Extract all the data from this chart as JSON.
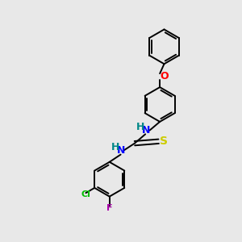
{
  "bg_color": "#e8e8e8",
  "bond_color": "#000000",
  "atom_colors": {
    "N": "#0000ff",
    "S": "#cccc00",
    "O": "#ff0000",
    "Cl": "#00bb00",
    "F": "#aa00aa",
    "H_teal": "#008888",
    "C": "#000000"
  },
  "figsize": [
    3.0,
    3.0
  ],
  "dpi": 100,
  "ring_r": 0.72,
  "lw": 1.4
}
